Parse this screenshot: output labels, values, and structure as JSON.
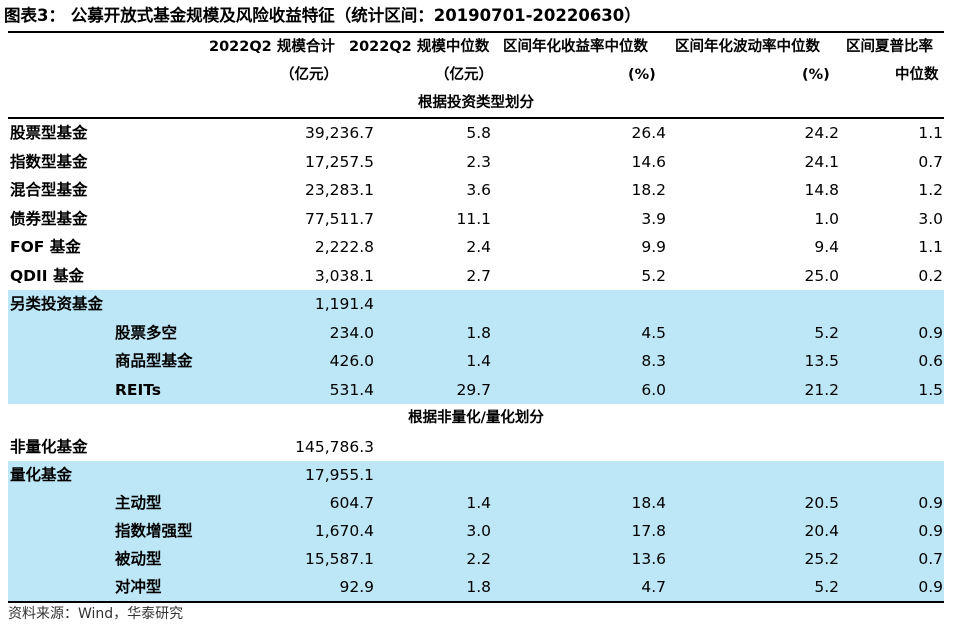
{
  "title": "图表3：  公募开放式基金规模及风险收益特征（统计区间：20190701-20220630）",
  "headers": {
    "col1": [
      "2022Q2 规模合计",
      "（亿元）"
    ],
    "col2": [
      "2022Q2 规模中位数",
      "（亿元）"
    ],
    "col3": [
      "区间年化收益率中位数",
      "(%)"
    ],
    "col4": [
      "区间年化波动率中位数",
      "(%)"
    ],
    "col5": [
      "区间夏普比率",
      "中位数"
    ]
  },
  "section1": "根据投资类型划分",
  "section2": "根据非量化/量化划分",
  "rows1": [
    {
      "label": "股票型基金",
      "v1": "39,236.7",
      "v2": "5.8",
      "v3": "26.4",
      "v4": "24.2",
      "v5": "1.1",
      "indent": false,
      "shade": "white"
    },
    {
      "label": "指数型基金",
      "v1": "17,257.5",
      "v2": "2.3",
      "v3": "14.6",
      "v4": "24.1",
      "v5": "0.7",
      "indent": false,
      "shade": "white"
    },
    {
      "label": "混合型基金",
      "v1": "23,283.1",
      "v2": "3.6",
      "v3": "18.2",
      "v4": "14.8",
      "v5": "1.2",
      "indent": false,
      "shade": "white"
    },
    {
      "label": "债券型基金",
      "v1": "77,511.7",
      "v2": "11.1",
      "v3": "3.9",
      "v4": "1.0",
      "v5": "3.0",
      "indent": false,
      "shade": "white"
    },
    {
      "label": "FOF 基金",
      "v1": "2,222.8",
      "v2": "2.4",
      "v3": "9.9",
      "v4": "9.4",
      "v5": "1.1",
      "indent": false,
      "shade": "white"
    },
    {
      "label": "QDII 基金",
      "v1": "3,038.1",
      "v2": "2.7",
      "v3": "5.2",
      "v4": "25.0",
      "v5": "0.2",
      "indent": false,
      "shade": "white"
    },
    {
      "label": "另类投资基金",
      "v1": "1,191.4",
      "v2": "",
      "v3": "",
      "v4": "",
      "v5": "",
      "indent": false,
      "shade": "blue"
    },
    {
      "label": "股票多空",
      "v1": "234.0",
      "v2": "1.8",
      "v3": "4.5",
      "v4": "5.2",
      "v5": "0.9",
      "indent": true,
      "shade": "blue"
    },
    {
      "label": "商品型基金",
      "v1": "426.0",
      "v2": "1.4",
      "v3": "8.3",
      "v4": "13.5",
      "v5": "0.6",
      "indent": true,
      "shade": "blue"
    },
    {
      "label": "REITs",
      "v1": "531.4",
      "v2": "29.7",
      "v3": "6.0",
      "v4": "21.2",
      "v5": "1.5",
      "indent": true,
      "shade": "blue"
    }
  ],
  "rows2": [
    {
      "label": "非量化基金",
      "v1": "145,786.3",
      "v2": "",
      "v3": "",
      "v4": "",
      "v5": "",
      "indent": false,
      "shade": "white"
    },
    {
      "label": "量化基金",
      "v1": "17,955.1",
      "v2": "",
      "v3": "",
      "v4": "",
      "v5": "",
      "indent": false,
      "shade": "blue"
    },
    {
      "label": "主动型",
      "v1": "604.7",
      "v2": "1.4",
      "v3": "18.4",
      "v4": "20.5",
      "v5": "0.9",
      "indent": true,
      "shade": "blue"
    },
    {
      "label": "指数增强型",
      "v1": "1,670.4",
      "v2": "3.0",
      "v3": "17.8",
      "v4": "20.4",
      "v5": "0.9",
      "indent": true,
      "shade": "blue"
    },
    {
      "label": "被动型",
      "v1": "15,587.1",
      "v2": "2.2",
      "v3": "13.6",
      "v4": "25.2",
      "v5": "0.7",
      "indent": true,
      "shade": "blue"
    },
    {
      "label": "对冲型",
      "v1": "92.9",
      "v2": "1.8",
      "v3": "4.7",
      "v4": "5.2",
      "v5": "0.9",
      "indent": true,
      "shade": "blue"
    }
  ],
  "source": "资料来源：Wind，华泰研究",
  "colors": {
    "shade_blue": "#bde7f7",
    "rule": "#000000"
  }
}
